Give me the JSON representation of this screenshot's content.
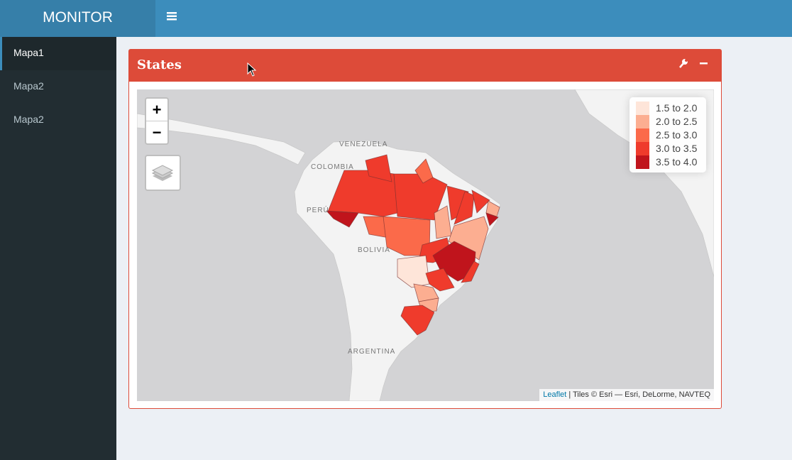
{
  "header": {
    "brand": "MONITOR"
  },
  "sidebar": {
    "items": [
      "Mapa1",
      "Mapa2",
      "Mapa2"
    ]
  },
  "box": {
    "title": "States"
  },
  "map": {
    "zoom_in": "+",
    "zoom_out": "−",
    "labels": [
      "VENEZUELA",
      "COLOMBIA",
      "PERÚ",
      "BOLIVIA",
      "ARGENTINA"
    ],
    "legend": [
      {
        "label": "1.5 to 2.0",
        "color": "#fee5d9"
      },
      {
        "label": "2.0 to 2.5",
        "color": "#fcae91"
      },
      {
        "label": "2.5 to 3.0",
        "color": "#fb6a4a"
      },
      {
        "label": "3.0 to 3.5",
        "color": "#ef3b2c"
      },
      {
        "label": "3.5 to 4.0",
        "color": "#c0141c"
      }
    ],
    "attribution_link": "Leaflet",
    "attribution_text": " | Tiles © Esri — Esri, DeLorme, NAVTEQ"
  }
}
